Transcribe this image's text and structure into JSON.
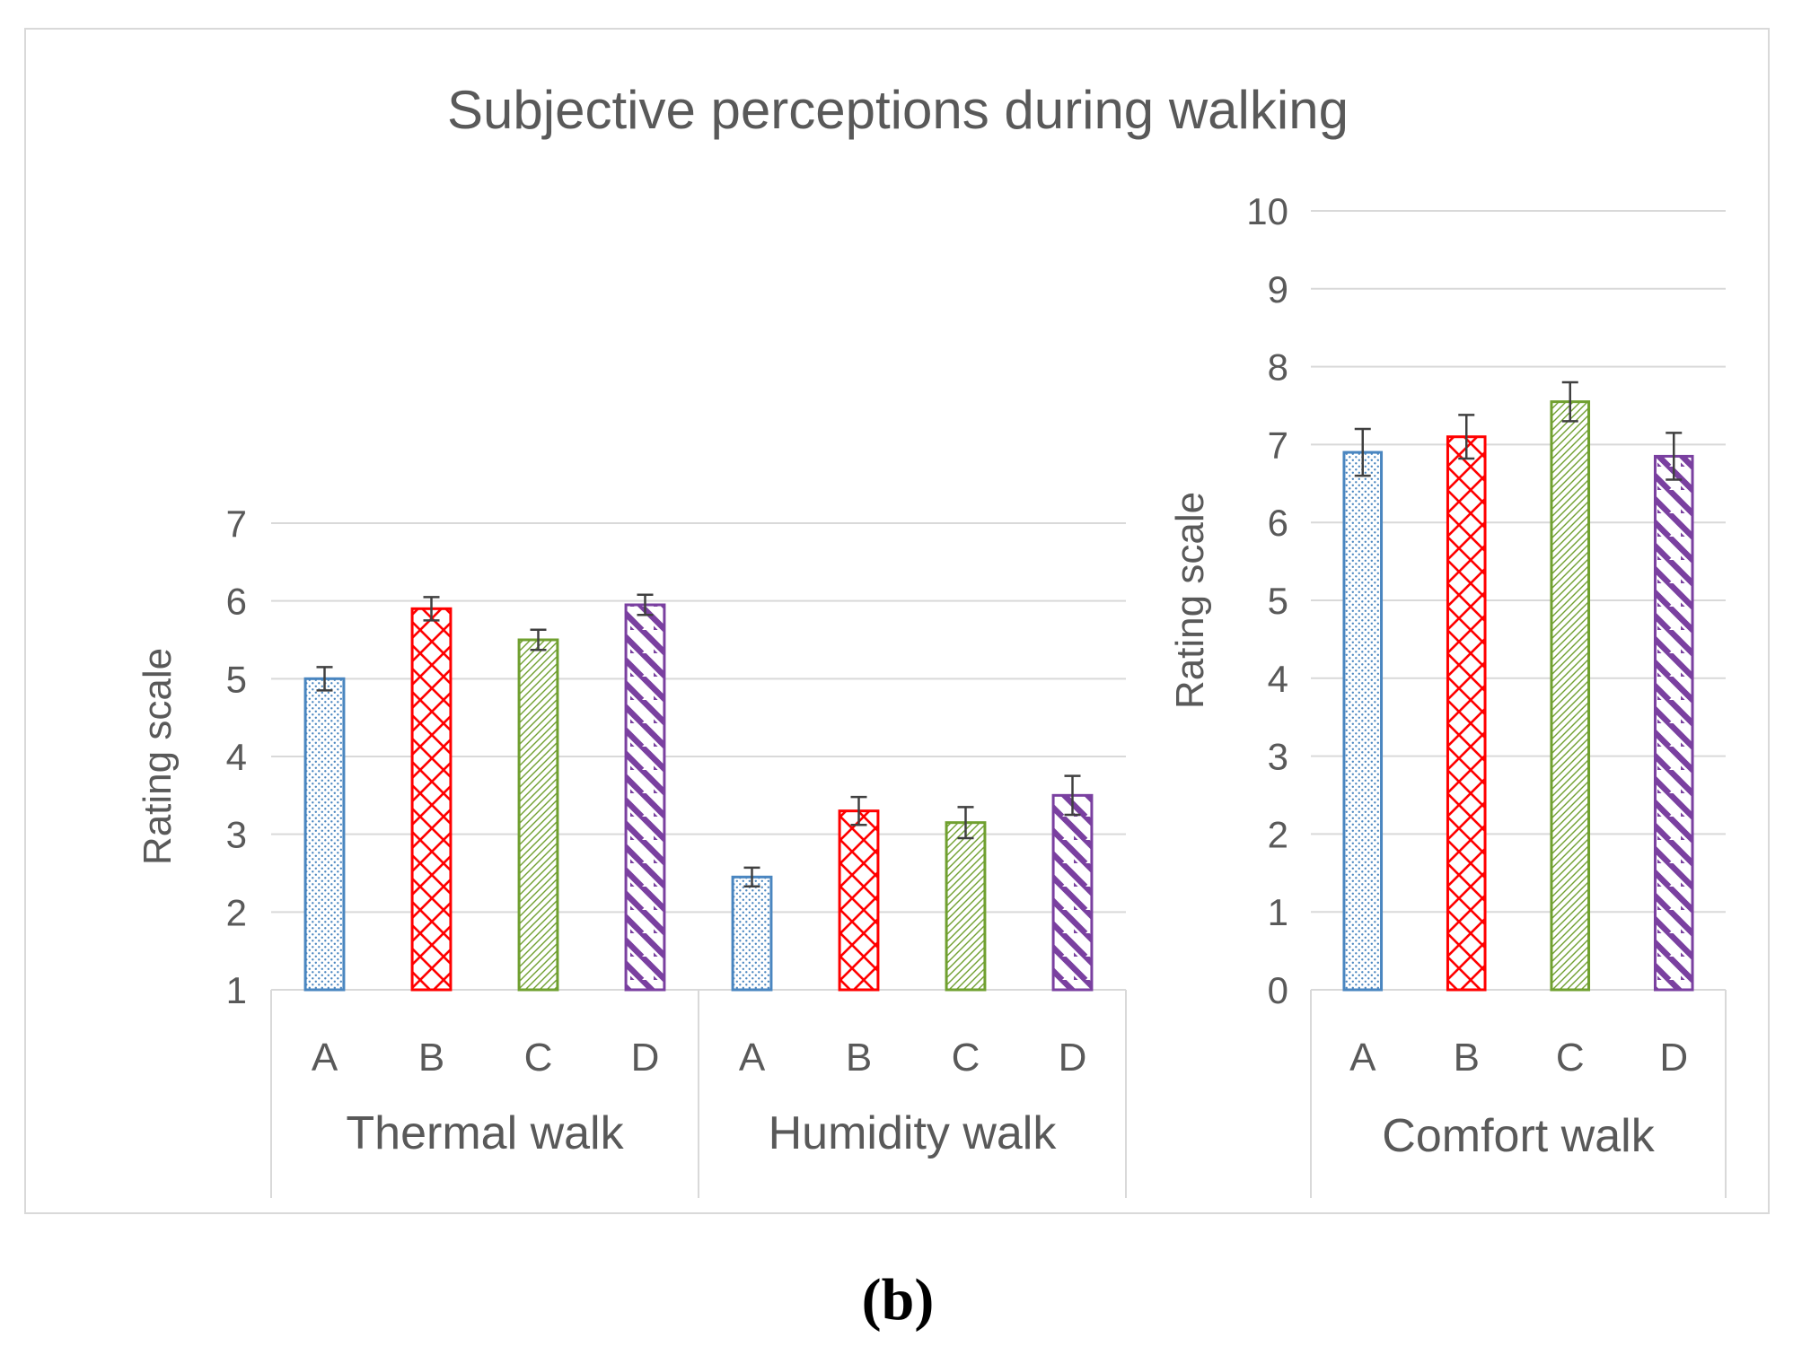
{
  "title": "Subjective perceptions during walking",
  "caption": "(b)",
  "colors": {
    "frame": "#d9d9d9",
    "grid": "#d9d9d9",
    "text": "#595959",
    "error_bar": "#404040",
    "series_A": "#4a86c0",
    "series_B": "#ff0000",
    "series_C": "#70a030",
    "series_D": "#7a40a0"
  },
  "patterns": {
    "A": "dotted",
    "B": "crosshatch",
    "C": "fine-diagonal",
    "D": "wide-diagonal-stripes"
  },
  "chart_data": [
    {
      "type": "bar",
      "ylabel": "Rating scale",
      "ylim": [
        1,
        7
      ],
      "yticks": [
        "1",
        "2",
        "3",
        "4",
        "5",
        "6",
        "7"
      ],
      "grid": true,
      "groups": [
        {
          "name": "Thermal walk",
          "categories": [
            "A",
            "B",
            "C",
            "D"
          ],
          "values": [
            5.0,
            5.9,
            5.5,
            5.95
          ],
          "errors": [
            0.15,
            0.15,
            0.13,
            0.13
          ]
        },
        {
          "name": "Humidity walk",
          "categories": [
            "A",
            "B",
            "C",
            "D"
          ],
          "values": [
            2.45,
            3.3,
            3.15,
            3.5
          ],
          "errors": [
            0.12,
            0.18,
            0.2,
            0.25
          ]
        }
      ]
    },
    {
      "type": "bar",
      "ylabel": "Rating scale",
      "ylim": [
        0,
        10
      ],
      "yticks": [
        "0",
        "1",
        "2",
        "3",
        "4",
        "5",
        "6",
        "7",
        "8",
        "9",
        "10"
      ],
      "grid": true,
      "groups": [
        {
          "name": "Comfort walk",
          "categories": [
            "A",
            "B",
            "C",
            "D"
          ],
          "values": [
            6.9,
            7.1,
            7.55,
            6.85
          ],
          "errors": [
            0.3,
            0.28,
            0.25,
            0.3
          ]
        }
      ]
    }
  ]
}
